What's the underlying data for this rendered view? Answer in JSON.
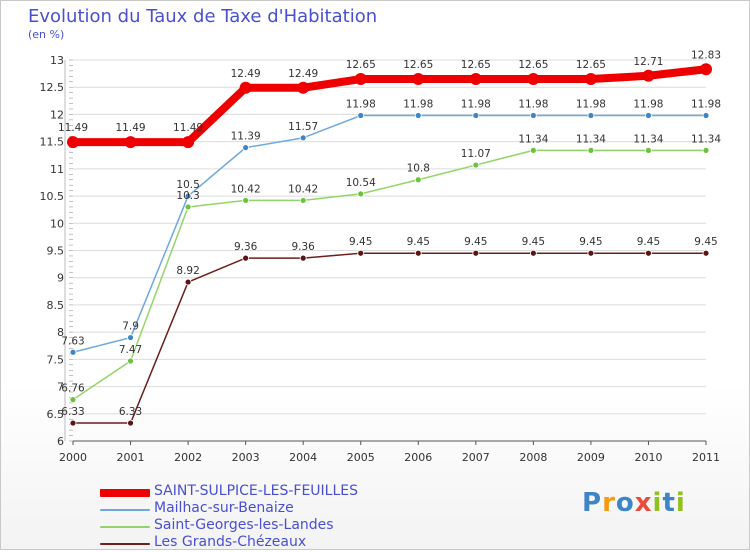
{
  "title": "Evolution du Taux de Taxe d'Habitation",
  "unit_label": "(en %)",
  "logo_text": "Proxiti",
  "colors": {
    "title": "#4a4fd1",
    "grid": "#dcdcdc",
    "axis": "#555555",
    "label": "#333333"
  },
  "chart_data": {
    "type": "line",
    "title": "Evolution du Taux de Taxe d'Habitation",
    "ylabel": "(en %)",
    "xlabel": "",
    "x": [
      "2000",
      "2001",
      "2002",
      "2003",
      "2004",
      "2005",
      "2006",
      "2007",
      "2008",
      "2009",
      "2010",
      "2011"
    ],
    "ylim": [
      6,
      13
    ],
    "yticks": [
      "6",
      "6.5",
      "7",
      "7.5",
      "8",
      "8.5",
      "9",
      "9.5",
      "10",
      "10.5",
      "11",
      "11.5",
      "12",
      "12.5",
      "13"
    ],
    "series": [
      {
        "name": "SAINT-SULPICE-LES-FEUILLES",
        "color": "#ee0000",
        "marker_fill": "#ee0000",
        "values": [
          11.49,
          11.49,
          11.49,
          12.49,
          12.49,
          12.65,
          12.65,
          12.65,
          12.65,
          12.65,
          12.71,
          12.83
        ]
      },
      {
        "name": "Mailhac-sur-Benaize",
        "color": "#6fa8dc",
        "marker_fill": "#3d85c6",
        "values": [
          7.63,
          7.9,
          10.5,
          11.39,
          11.57,
          11.98,
          11.98,
          11.98,
          11.98,
          11.98,
          11.98,
          11.98
        ]
      },
      {
        "name": "Saint-Georges-les-Landes",
        "color": "#93d46a",
        "marker_fill": "#6cc23d",
        "values": [
          6.76,
          7.47,
          10.3,
          10.42,
          10.42,
          10.54,
          10.8,
          11.07,
          11.34,
          11.34,
          11.34,
          11.34
        ]
      },
      {
        "name": "Les Grands-Chézeaux",
        "color": "#6b1f1f",
        "marker_fill": "#5a1414",
        "values": [
          6.33,
          6.33,
          8.92,
          9.36,
          9.36,
          9.45,
          9.45,
          9.45,
          9.45,
          9.45,
          9.45,
          9.45
        ]
      }
    ],
    "data_labels": [
      [
        "11.49",
        "11.49",
        "11.49",
        "12.49",
        "12.49",
        "12.65",
        "12.65",
        "12.65",
        "12.65",
        "12.65",
        "12.71",
        "12.83"
      ],
      [
        "7.63",
        "7.9",
        "10.5",
        "11.39",
        "11.57",
        "11.98",
        "11.98",
        "11.98",
        "11.98",
        "11.98",
        "11.98",
        "11.98"
      ],
      [
        "6.76",
        "7.47",
        "10.3",
        "10.42",
        "10.42",
        "10.54",
        "10.8",
        "11.07",
        "11.34",
        "11.34",
        "11.34",
        "11.34"
      ],
      [
        "6.33",
        "6.33",
        "8.92",
        "9.36",
        "9.36",
        "9.45",
        "9.45",
        "9.45",
        "9.45",
        "9.45",
        "9.45",
        "9.45"
      ]
    ],
    "legend_position": "bottom-left"
  }
}
